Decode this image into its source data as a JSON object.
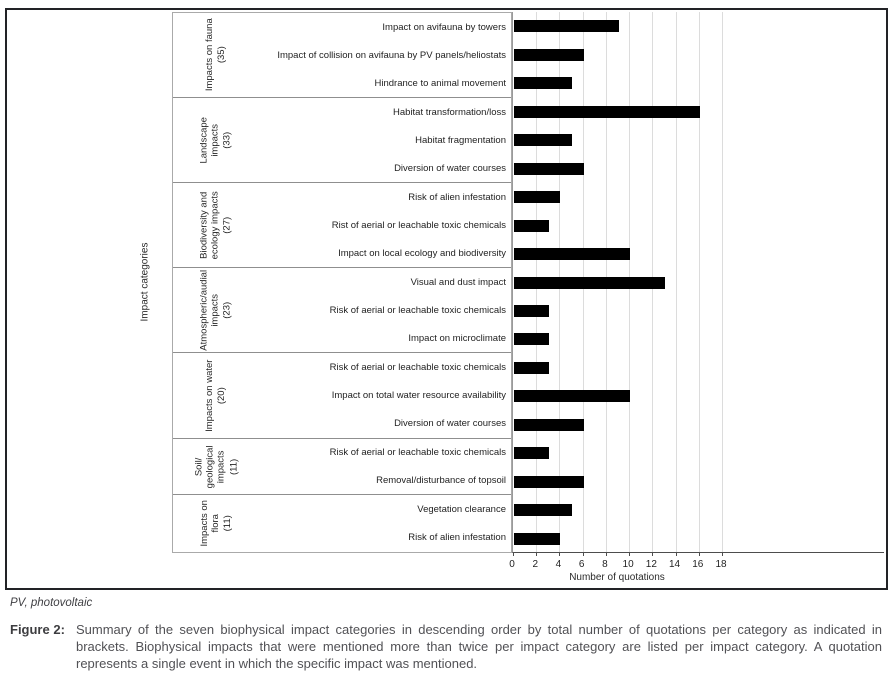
{
  "chart_data": {
    "type": "bar",
    "orientation": "horizontal",
    "title": "",
    "xlabel": "Number of quotations",
    "ylabel": "Impact categories",
    "xlim": [
      0,
      18
    ],
    "x_ticks": [
      0,
      2,
      4,
      6,
      8,
      10,
      12,
      14,
      16,
      18
    ],
    "grid": true,
    "bar_color": "#000000",
    "gridline_color": "#dcdcdc",
    "groups": [
      {
        "label": "Impacts on fauna",
        "bracket": "(35)",
        "items": [
          {
            "label": "Impact on avifauna by towers",
            "value": 9
          },
          {
            "label": "Impact of collision on avifauna by PV panels/heliostats",
            "value": 6
          },
          {
            "label": "Hindrance to animal movement",
            "value": 5
          }
        ]
      },
      {
        "label": "Landscape impacts",
        "bracket": "(33)",
        "items": [
          {
            "label": "Habitat transformation/loss",
            "value": 16
          },
          {
            "label": "Habitat fragmentation",
            "value": 5
          },
          {
            "label": "Diversion of water courses",
            "value": 6
          }
        ]
      },
      {
        "label": "Biodiversity and ecology impacts",
        "bracket": "(27)",
        "items": [
          {
            "label": "Risk of alien infestation",
            "value": 4
          },
          {
            "label": "Rist of aerial or leachable toxic chemicals",
            "value": 3
          },
          {
            "label": "Impact on local ecology and biodiversity",
            "value": 10
          }
        ]
      },
      {
        "label": "Atmospheric/audial impacts",
        "bracket": "(23)",
        "items": [
          {
            "label": "Visual and dust impact",
            "value": 13
          },
          {
            "label": "Risk of aerial or leachable toxic chemicals",
            "value": 3
          },
          {
            "label": "Impact on microclimate",
            "value": 3
          }
        ]
      },
      {
        "label": "Impacts on water",
        "bracket": "(20)",
        "items": [
          {
            "label": "Risk of aerial or leachable toxic chemicals",
            "value": 3
          },
          {
            "label": "Impact on total water resource availability",
            "value": 10
          },
          {
            "label": "Diversion of water courses",
            "value": 6
          }
        ]
      },
      {
        "label": "Soil/ geological impacts",
        "bracket": "(11)",
        "items": [
          {
            "label": "Risk of aerial or leachable toxic chemicals",
            "value": 3
          },
          {
            "label": "Removal/disturbance of topsoil",
            "value": 6
          }
        ]
      },
      {
        "label": "Impacts on flora",
        "bracket": "(11)",
        "items": [
          {
            "label": "Vegetation clearance",
            "value": 5
          },
          {
            "label": "Risk of alien infestation",
            "value": 4
          }
        ]
      }
    ]
  },
  "footnote": "PV, photovoltaic",
  "caption": {
    "label": "Figure 2:",
    "text": "Summary of the seven biophysical impact categories in descending order by total number of quotations per category as indicated in brackets. Biophysical impacts that were mentioned more than twice per impact category are listed per impact category. A quotation represents a single event in which the specific impact was mentioned."
  }
}
